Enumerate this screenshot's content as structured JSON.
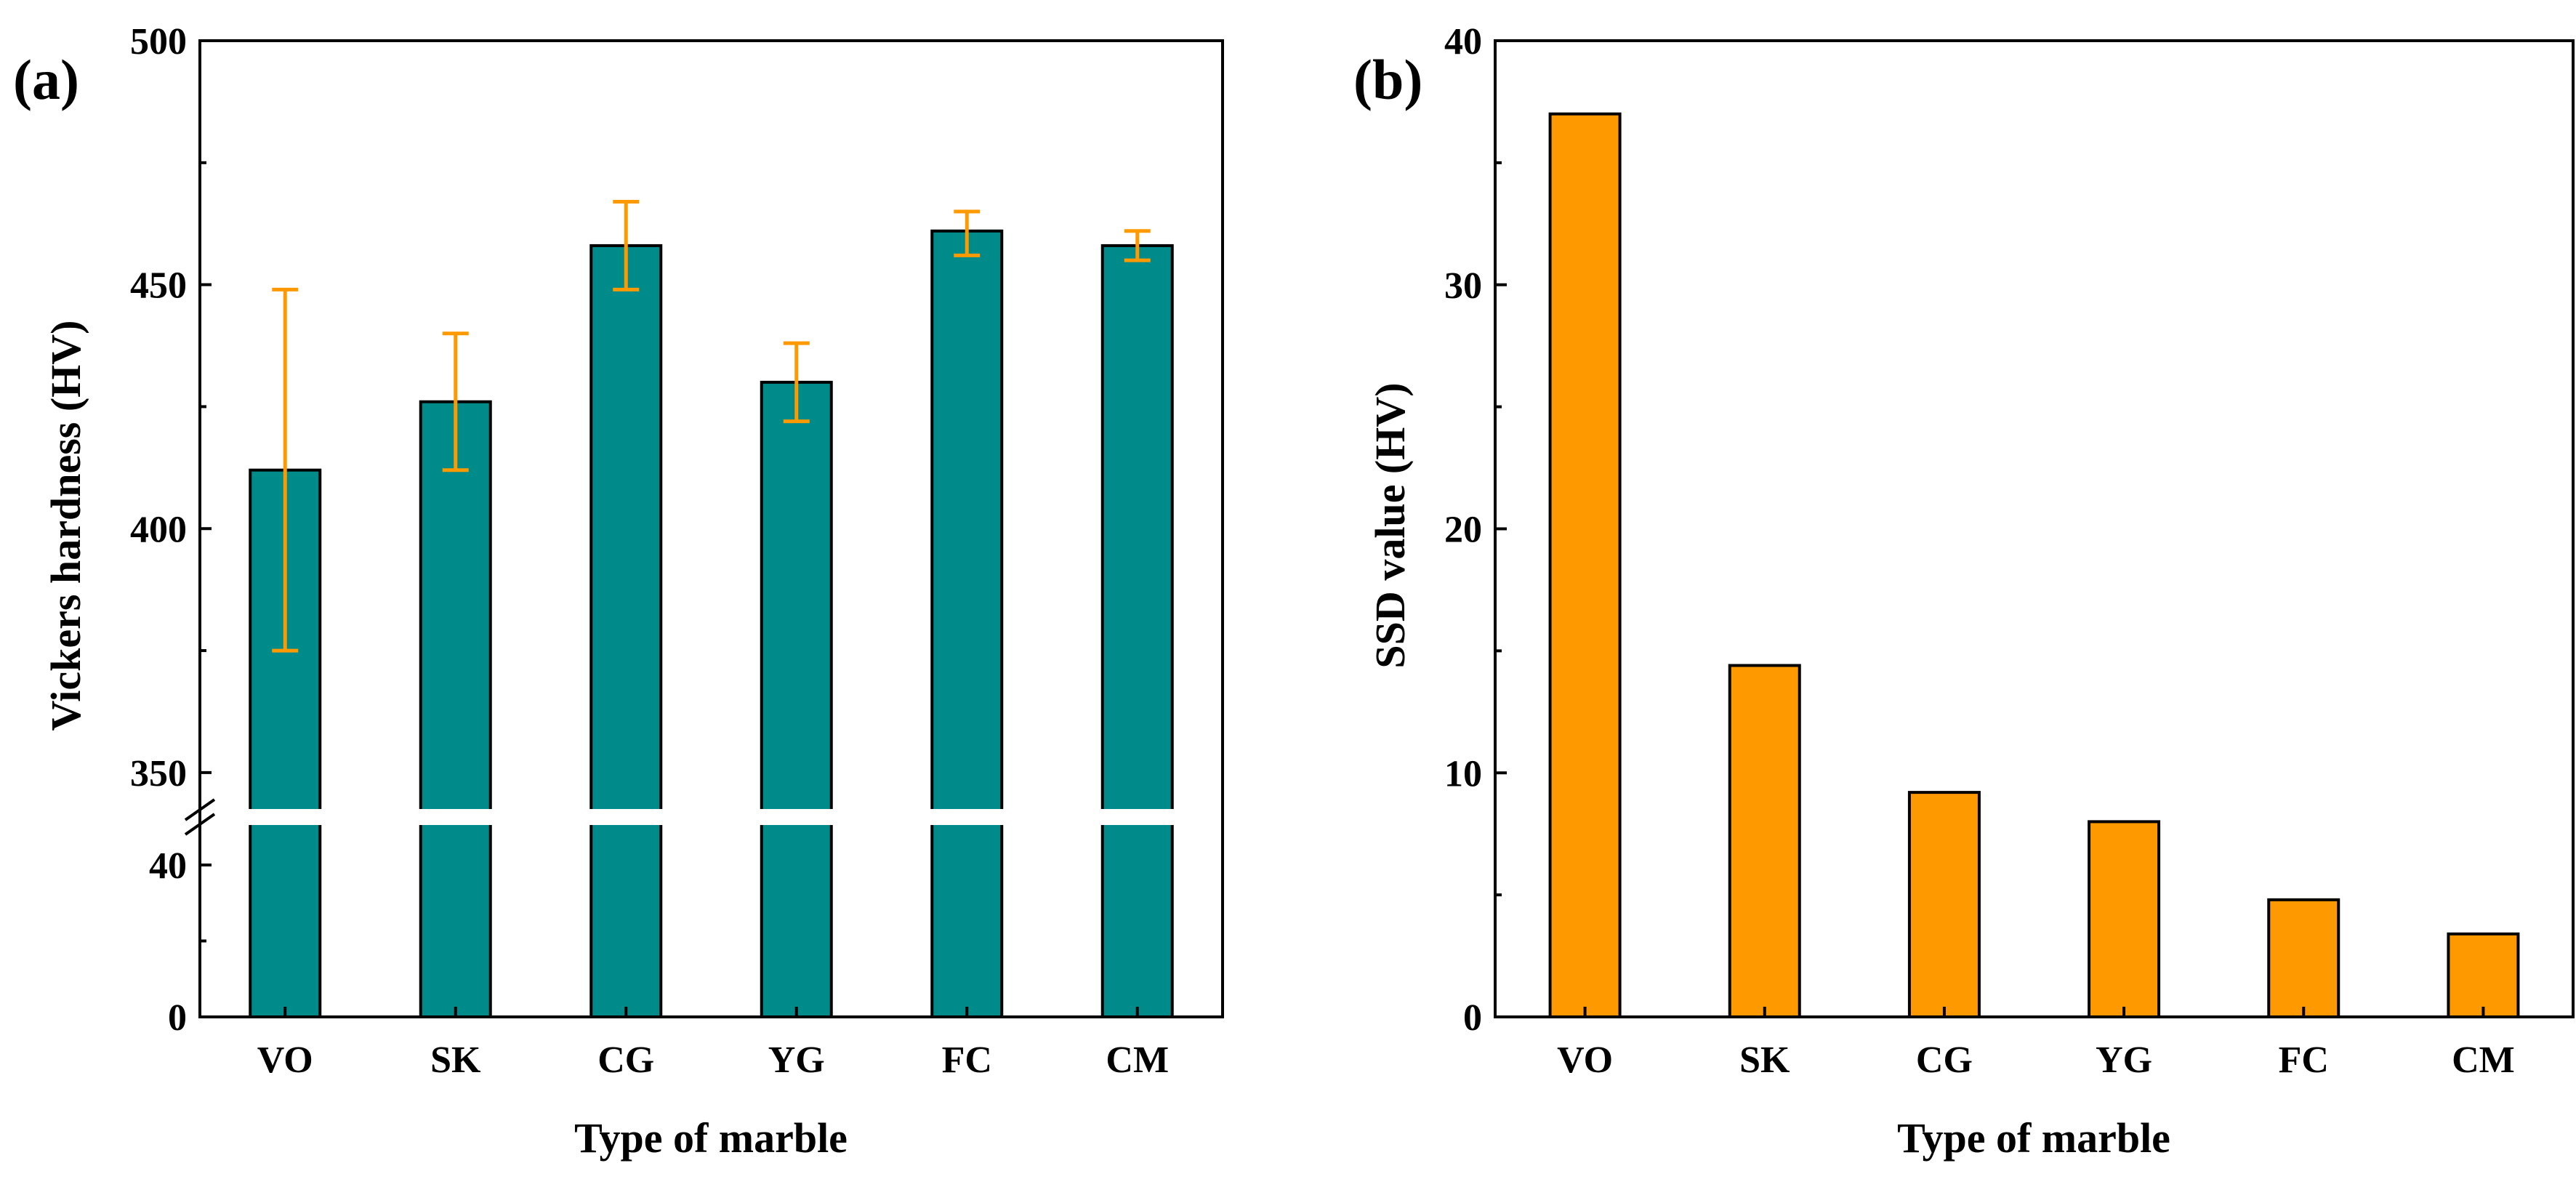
{
  "colors": {
    "bar_a": "#008B8B",
    "bar_b": "#FF9900",
    "error_bar": "#FF9900",
    "axis": "#000000",
    "break_gap": "#FFFFFF"
  },
  "chart_data": [
    {
      "panel_label": "(a)",
      "type": "bar",
      "categories": [
        "VO",
        "SK",
        "CG",
        "YG",
        "FC",
        "CM"
      ],
      "values": [
        412,
        426,
        458,
        430,
        461,
        458
      ],
      "error_low": [
        375,
        412,
        449,
        422,
        456,
        455
      ],
      "error_high": [
        449,
        440,
        467,
        438,
        465,
        461
      ],
      "xlabel": "Type of marble",
      "ylabel": "Vickers hardness (HV)",
      "axis_break": true,
      "lower_segment": {
        "ylim": [
          0,
          40
        ],
        "ticks": [
          0,
          40
        ],
        "tick_labels": [
          "0",
          "40"
        ]
      },
      "upper_segment": {
        "ylim": [
          340,
          500
        ],
        "ticks": [
          350,
          400,
          450,
          500
        ],
        "tick_labels": [
          "350",
          "400",
          "450",
          "500"
        ]
      }
    },
    {
      "panel_label": "(b)",
      "type": "bar",
      "categories": [
        "VO",
        "SK",
        "CG",
        "YG",
        "FC",
        "CM"
      ],
      "values": [
        37,
        14.4,
        9.2,
        8.0,
        4.8,
        3.4
      ],
      "xlabel": "Type of marble",
      "ylabel": "SSD value (HV)",
      "ylim": [
        0,
        40
      ],
      "ticks": [
        0,
        10,
        20,
        30,
        40
      ],
      "tick_labels": [
        "0",
        "10",
        "20",
        "30",
        "40"
      ]
    }
  ]
}
